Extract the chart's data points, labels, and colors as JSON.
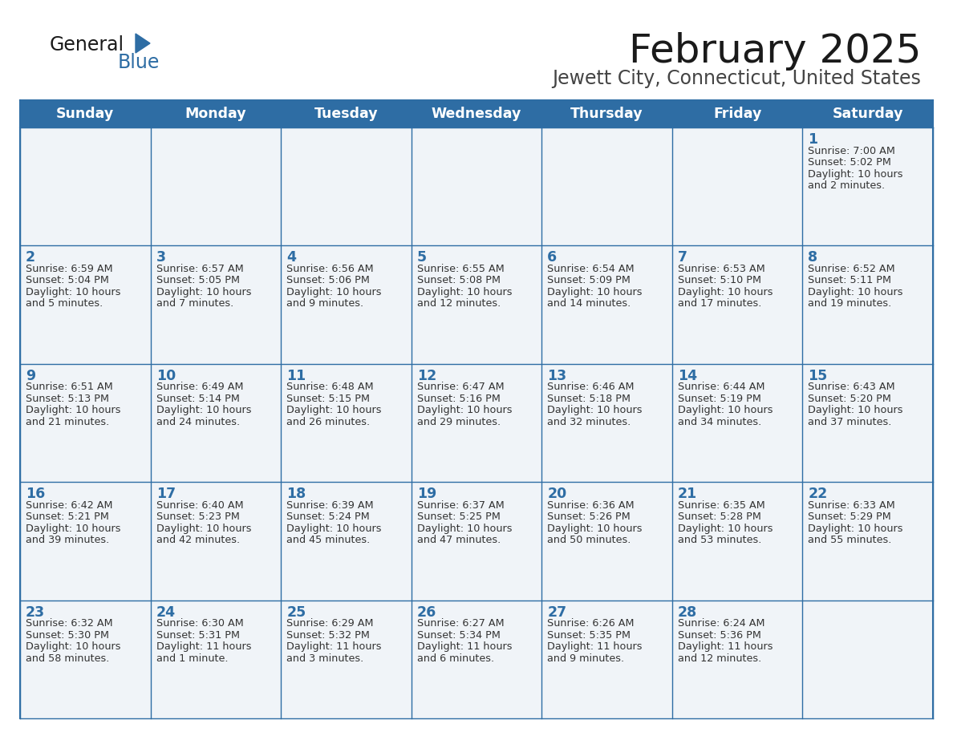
{
  "title": "February 2025",
  "subtitle": "Jewett City, Connecticut, United States",
  "days_of_week": [
    "Sunday",
    "Monday",
    "Tuesday",
    "Wednesday",
    "Thursday",
    "Friday",
    "Saturday"
  ],
  "header_bg_color": "#2e6da4",
  "header_text_color": "#ffffff",
  "cell_border_color": "#2e6da4",
  "day_number_color": "#2e6da4",
  "info_text_color": "#333333",
  "bg_color": "#ffffff",
  "cell_bg_color": "#f0f4f8",
  "logo_general_color": "#1a1a1a",
  "logo_blue_color": "#2e6da4",
  "title_color": "#1a1a1a",
  "subtitle_color": "#444444",
  "calendar_data": [
    [
      null,
      null,
      null,
      null,
      null,
      null,
      {
        "day": 1,
        "sunrise": "7:00 AM",
        "sunset": "5:02 PM",
        "daylight": "10 hours",
        "daylight2": "and 2 minutes."
      }
    ],
    [
      {
        "day": 2,
        "sunrise": "6:59 AM",
        "sunset": "5:04 PM",
        "daylight": "10 hours",
        "daylight2": "and 5 minutes."
      },
      {
        "day": 3,
        "sunrise": "6:57 AM",
        "sunset": "5:05 PM",
        "daylight": "10 hours",
        "daylight2": "and 7 minutes."
      },
      {
        "day": 4,
        "sunrise": "6:56 AM",
        "sunset": "5:06 PM",
        "daylight": "10 hours",
        "daylight2": "and 9 minutes."
      },
      {
        "day": 5,
        "sunrise": "6:55 AM",
        "sunset": "5:08 PM",
        "daylight": "10 hours",
        "daylight2": "and 12 minutes."
      },
      {
        "day": 6,
        "sunrise": "6:54 AM",
        "sunset": "5:09 PM",
        "daylight": "10 hours",
        "daylight2": "and 14 minutes."
      },
      {
        "day": 7,
        "sunrise": "6:53 AM",
        "sunset": "5:10 PM",
        "daylight": "10 hours",
        "daylight2": "and 17 minutes."
      },
      {
        "day": 8,
        "sunrise": "6:52 AM",
        "sunset": "5:11 PM",
        "daylight": "10 hours",
        "daylight2": "and 19 minutes."
      }
    ],
    [
      {
        "day": 9,
        "sunrise": "6:51 AM",
        "sunset": "5:13 PM",
        "daylight": "10 hours",
        "daylight2": "and 21 minutes."
      },
      {
        "day": 10,
        "sunrise": "6:49 AM",
        "sunset": "5:14 PM",
        "daylight": "10 hours",
        "daylight2": "and 24 minutes."
      },
      {
        "day": 11,
        "sunrise": "6:48 AM",
        "sunset": "5:15 PM",
        "daylight": "10 hours",
        "daylight2": "and 26 minutes."
      },
      {
        "day": 12,
        "sunrise": "6:47 AM",
        "sunset": "5:16 PM",
        "daylight": "10 hours",
        "daylight2": "and 29 minutes."
      },
      {
        "day": 13,
        "sunrise": "6:46 AM",
        "sunset": "5:18 PM",
        "daylight": "10 hours",
        "daylight2": "and 32 minutes."
      },
      {
        "day": 14,
        "sunrise": "6:44 AM",
        "sunset": "5:19 PM",
        "daylight": "10 hours",
        "daylight2": "and 34 minutes."
      },
      {
        "day": 15,
        "sunrise": "6:43 AM",
        "sunset": "5:20 PM",
        "daylight": "10 hours",
        "daylight2": "and 37 minutes."
      }
    ],
    [
      {
        "day": 16,
        "sunrise": "6:42 AM",
        "sunset": "5:21 PM",
        "daylight": "10 hours",
        "daylight2": "and 39 minutes."
      },
      {
        "day": 17,
        "sunrise": "6:40 AM",
        "sunset": "5:23 PM",
        "daylight": "10 hours",
        "daylight2": "and 42 minutes."
      },
      {
        "day": 18,
        "sunrise": "6:39 AM",
        "sunset": "5:24 PM",
        "daylight": "10 hours",
        "daylight2": "and 45 minutes."
      },
      {
        "day": 19,
        "sunrise": "6:37 AM",
        "sunset": "5:25 PM",
        "daylight": "10 hours",
        "daylight2": "and 47 minutes."
      },
      {
        "day": 20,
        "sunrise": "6:36 AM",
        "sunset": "5:26 PM",
        "daylight": "10 hours",
        "daylight2": "and 50 minutes."
      },
      {
        "day": 21,
        "sunrise": "6:35 AM",
        "sunset": "5:28 PM",
        "daylight": "10 hours",
        "daylight2": "and 53 minutes."
      },
      {
        "day": 22,
        "sunrise": "6:33 AM",
        "sunset": "5:29 PM",
        "daylight": "10 hours",
        "daylight2": "and 55 minutes."
      }
    ],
    [
      {
        "day": 23,
        "sunrise": "6:32 AM",
        "sunset": "5:30 PM",
        "daylight": "10 hours",
        "daylight2": "and 58 minutes."
      },
      {
        "day": 24,
        "sunrise": "6:30 AM",
        "sunset": "5:31 PM",
        "daylight": "11 hours",
        "daylight2": "and 1 minute."
      },
      {
        "day": 25,
        "sunrise": "6:29 AM",
        "sunset": "5:32 PM",
        "daylight": "11 hours",
        "daylight2": "and 3 minutes."
      },
      {
        "day": 26,
        "sunrise": "6:27 AM",
        "sunset": "5:34 PM",
        "daylight": "11 hours",
        "daylight2": "and 6 minutes."
      },
      {
        "day": 27,
        "sunrise": "6:26 AM",
        "sunset": "5:35 PM",
        "daylight": "11 hours",
        "daylight2": "and 9 minutes."
      },
      {
        "day": 28,
        "sunrise": "6:24 AM",
        "sunset": "5:36 PM",
        "daylight": "11 hours",
        "daylight2": "and 12 minutes."
      },
      null
    ]
  ]
}
